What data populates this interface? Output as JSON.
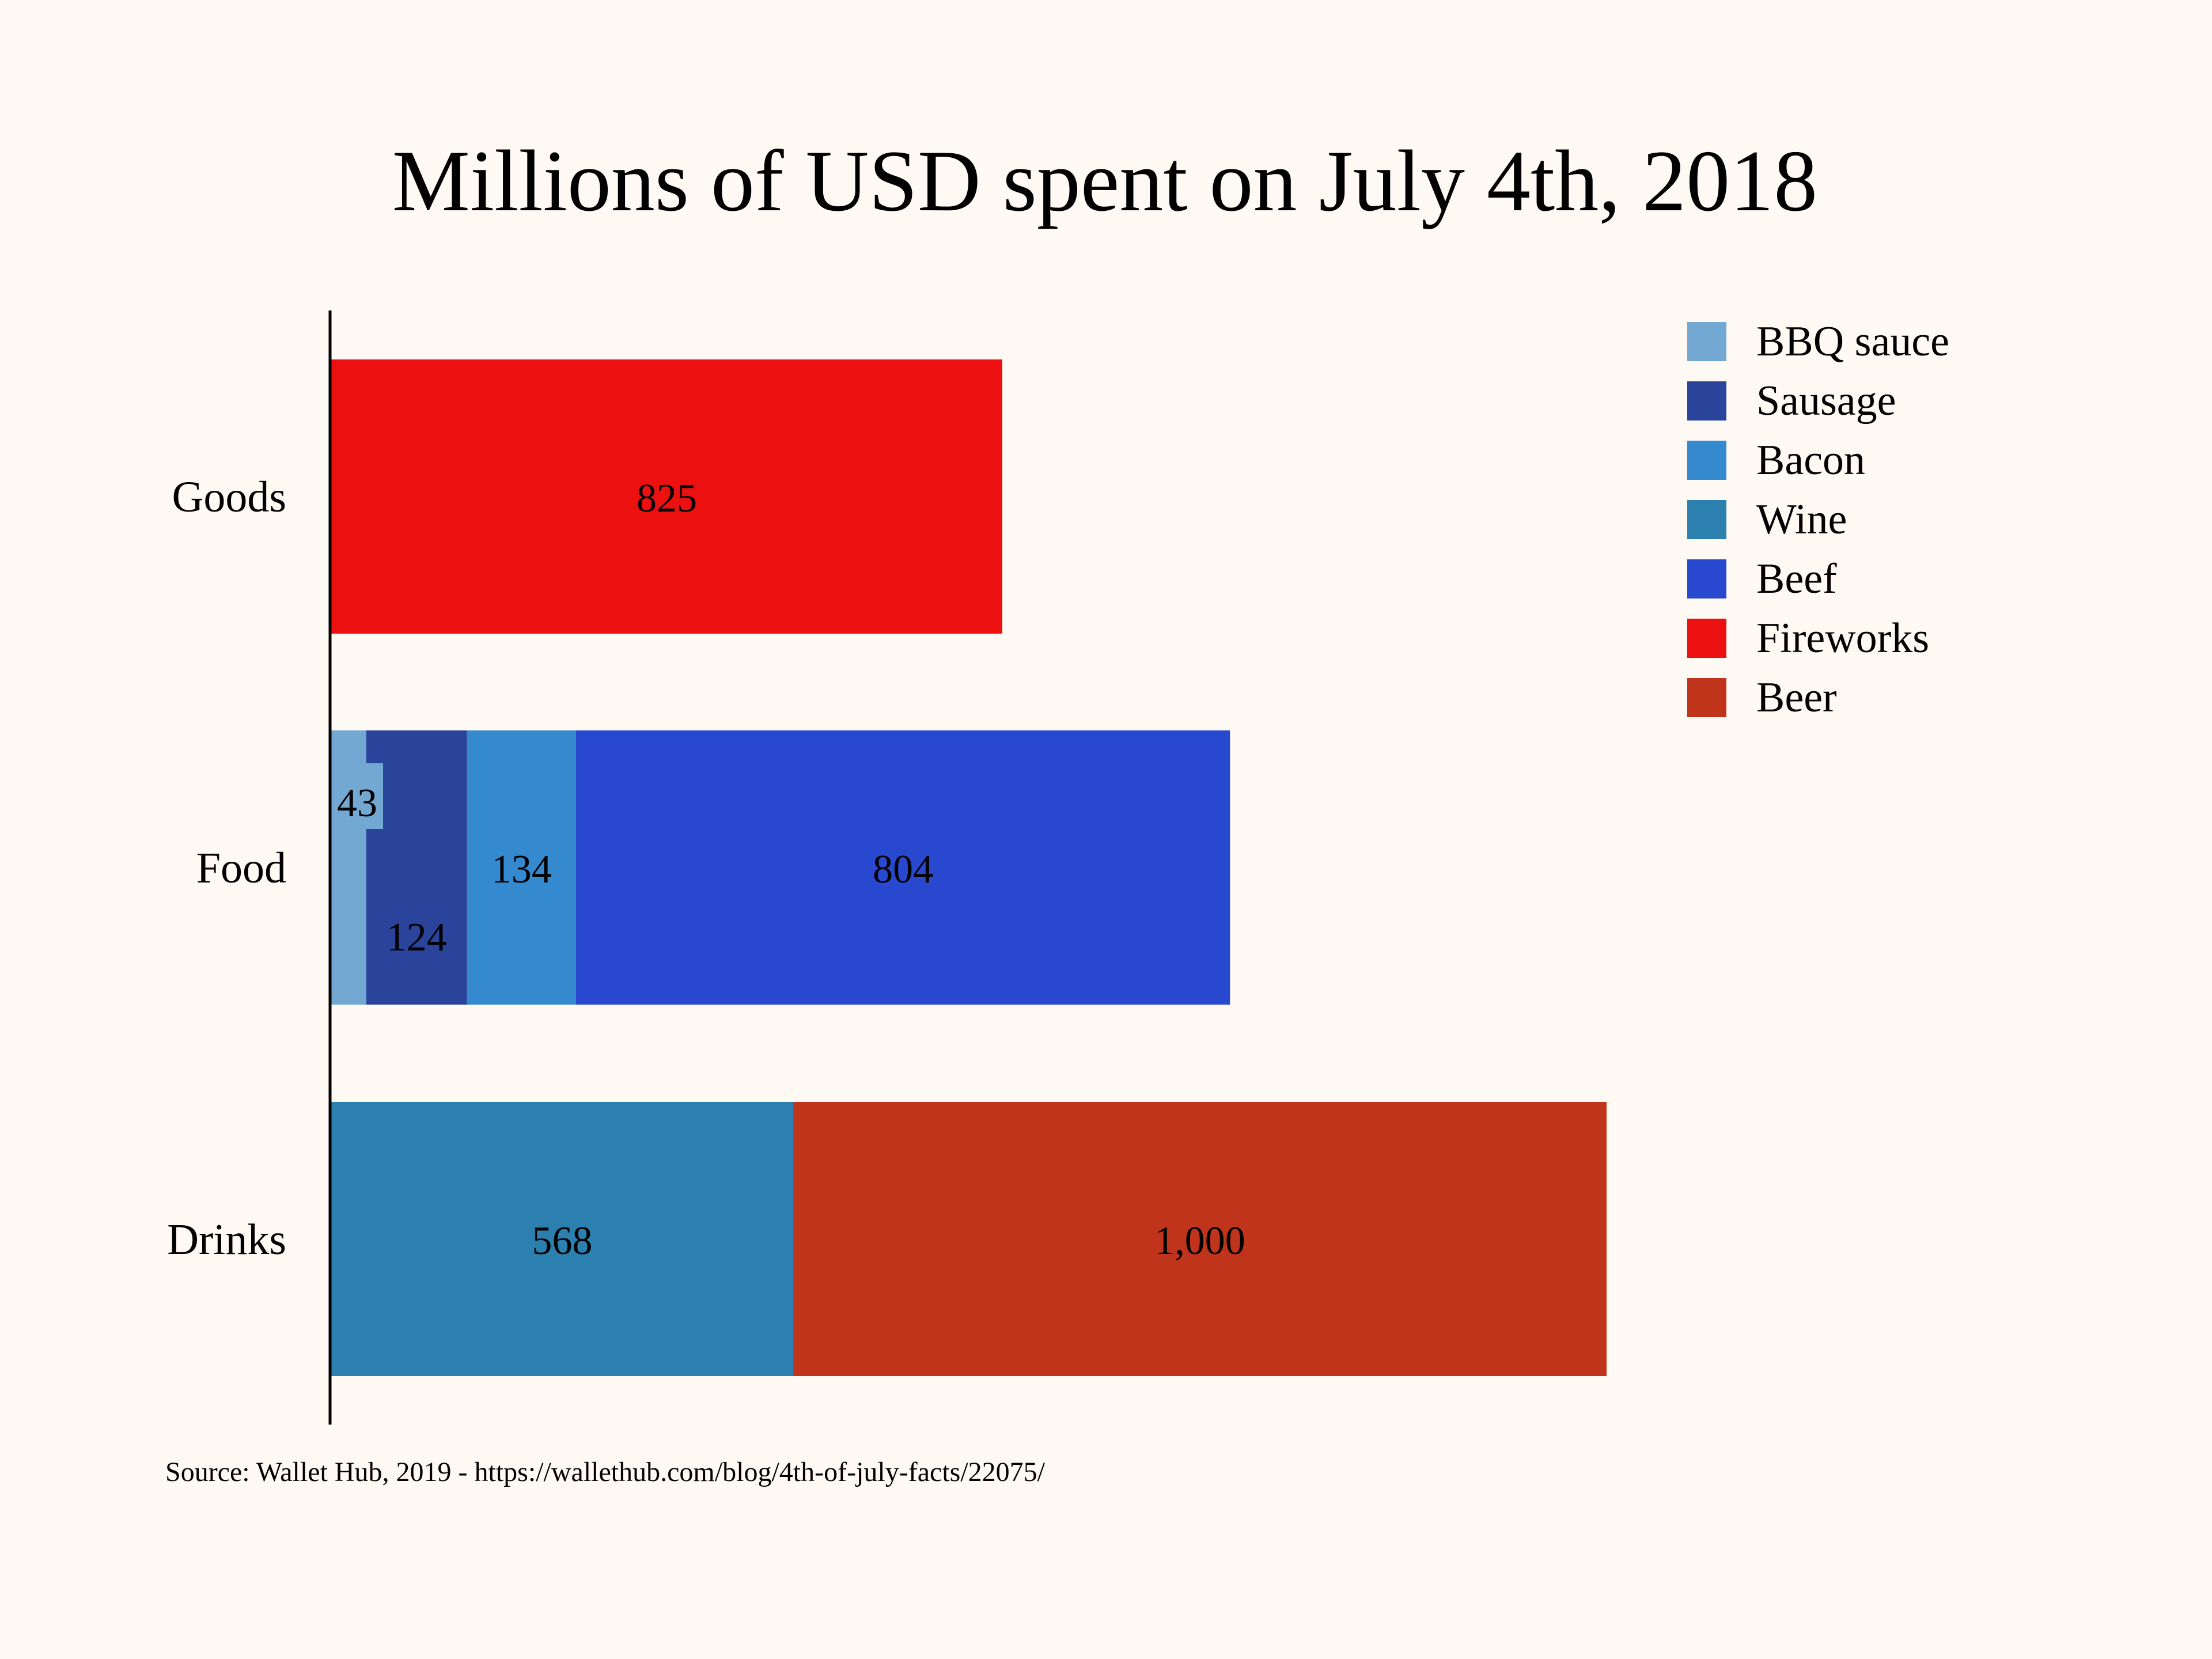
{
  "chart_data": {
    "type": "bar",
    "orientation": "horizontal",
    "stacked": true,
    "title": "Millions of USD spent on July 4th, 2018",
    "categories": [
      "Goods",
      "Food",
      "Drinks"
    ],
    "series": [
      {
        "name": "BBQ sauce",
        "color": "#73a8d3",
        "values": [
          null,
          43,
          null
        ],
        "labels": [
          "",
          "43",
          ""
        ]
      },
      {
        "name": "Sausage",
        "color": "#2a449c",
        "values": [
          null,
          124,
          null
        ],
        "labels": [
          "",
          "124",
          ""
        ]
      },
      {
        "name": "Bacon",
        "color": "#3589cf",
        "values": [
          null,
          134,
          null
        ],
        "labels": [
          "",
          "134",
          ""
        ]
      },
      {
        "name": "Wine",
        "color": "#2c80b0",
        "values": [
          null,
          null,
          568
        ],
        "labels": [
          "",
          "",
          "568"
        ]
      },
      {
        "name": "Beef",
        "color": "#2849cf",
        "values": [
          null,
          804,
          null
        ],
        "labels": [
          "",
          "804",
          ""
        ]
      },
      {
        "name": "Fireworks",
        "color": "#ec1010",
        "values": [
          825,
          null,
          null
        ],
        "labels": [
          "825",
          "",
          ""
        ]
      },
      {
        "name": "Beer",
        "color": "#bf341b",
        "values": [
          null,
          null,
          1000
        ],
        "labels": [
          "",
          "",
          "1,000"
        ]
      }
    ],
    "xlim": [
      0,
      1600
    ],
    "x_axis_visible": false,
    "grid": false,
    "legend": "top-right",
    "source": "Source: Wallet Hub, 2019 - https://wallethub.com/blog/4th-of-july-facts/22075/"
  }
}
